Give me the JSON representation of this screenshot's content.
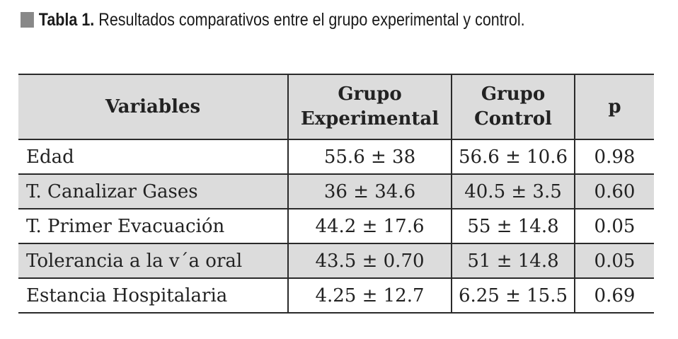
{
  "caption": {
    "label": "Tabla 1.",
    "text": "Resultados comparativos entre el grupo experimental y control."
  },
  "table": {
    "headers": [
      {
        "line1": "Variables",
        "line2": ""
      },
      {
        "line1": "Grupo",
        "line2": "Experimental"
      },
      {
        "line1": "Grupo",
        "line2": "Control"
      },
      {
        "line1": "p",
        "line2": ""
      }
    ],
    "rows": [
      {
        "variable": "Edad",
        "experimental": "55.6 ± 38",
        "control": "56.6 ± 10.6",
        "p": "0.98"
      },
      {
        "variable": "T. Canalizar Gases",
        "experimental": "36 ± 34.6",
        "control": "40.5 ± 3.5",
        "p": "0.60"
      },
      {
        "variable": "T. Primer Evacuación",
        "experimental": "44.2 ± 17.6",
        "control": "55 ± 14.8",
        "p": "0.05"
      },
      {
        "variable": "Tolerancia a la v´a oral",
        "experimental": "43.5 ± 0.70",
        "control": "51 ± 14.8",
        "p": "0.05"
      },
      {
        "variable": "Estancia Hospitalaria",
        "experimental": "4.25 ± 12.7",
        "control": "6.25 ± 15.5",
        "p": "0.69"
      }
    ]
  }
}
